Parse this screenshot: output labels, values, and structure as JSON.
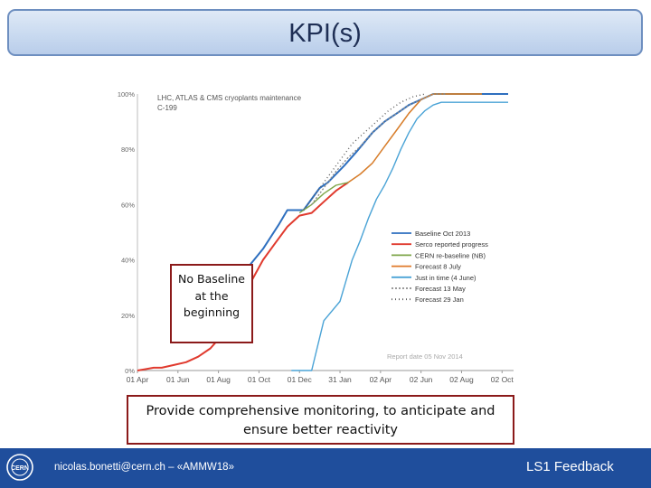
{
  "slide": {
    "title": "KPI(s)",
    "callout_baseline": "No Baseline at the beginning",
    "callout_summary": "Provide comprehensive monitoring, to anticipate and ensure better reactivity"
  },
  "footer": {
    "author": "nicolas.bonetti@cern.ch – «AMMW18»",
    "right_label": "LS1 Feedback",
    "logo_icon": "cern-logo-icon"
  },
  "chart_data": {
    "type": "line",
    "title": "LHC, ATLAS & CMS cryoplants maintenance C-199",
    "footnote": "Report date 05 Nov 2014",
    "x_ticks": [
      "01 Apr",
      "01 Jun",
      "01 Aug",
      "01 Oct",
      "01 Dec",
      "31 Jan",
      "02 Apr",
      "02 Jun",
      "02 Aug",
      "02 Oct"
    ],
    "y_ticks": [
      "0%",
      "20%",
      "40%",
      "60%",
      "80%",
      "100%"
    ],
    "ylim": [
      0,
      100
    ],
    "xlim": [
      0,
      18.3
    ],
    "grid": false,
    "legend_position": "right",
    "series": [
      {
        "name": "Baseline Oct 2013",
        "color": "#2e6fbf",
        "dash": "",
        "x": [
          5.2,
          6.2,
          7.0,
          7.4,
          8.2,
          9.0,
          9.4,
          10.2,
          10.8,
          11.6,
          12.2,
          13.0,
          13.4,
          14.0,
          14.6,
          15.2,
          16.0,
          18.3
        ],
        "y": [
          35,
          44,
          53,
          58,
          58,
          66,
          68,
          74,
          79,
          86,
          90,
          94,
          96,
          98,
          100,
          100,
          100,
          100
        ]
      },
      {
        "name": "Serco reported progress",
        "color": "#e03a2e",
        "dash": "",
        "x": [
          0,
          0.4,
          0.8,
          1.2,
          1.8,
          2.4,
          3.0,
          3.6,
          4.2,
          4.6,
          5.0,
          5.6,
          6.2,
          6.8,
          7.4,
          8.0,
          8.6,
          9.2,
          9.8,
          10.4
        ],
        "y": [
          0,
          0.5,
          1,
          1,
          2,
          3,
          5,
          8,
          13,
          19,
          25,
          32,
          40,
          46,
          52,
          56,
          57,
          61,
          65,
          68
        ]
      },
      {
        "name": "CERN re-baseline (NB)",
        "color": "#7fa64a",
        "dash": "",
        "x": [
          8.0,
          8.6,
          9.2,
          9.8,
          10.4,
          11.0,
          11.6,
          12.2,
          12.8,
          13.4,
          14.0,
          14.6,
          15.2,
          16.0,
          17.0
        ],
        "y": [
          57,
          60,
          64,
          67,
          68,
          71,
          75,
          81,
          87,
          93,
          98,
          100,
          100,
          100,
          100
        ]
      },
      {
        "name": "Forecast 8 July",
        "color": "#e07a2a",
        "dash": "",
        "x": [
          10.4,
          11.0,
          11.6,
          12.2,
          12.8,
          13.4,
          14.0,
          14.6,
          15.2,
          16.0,
          17.0
        ],
        "y": [
          68,
          71,
          75,
          81,
          87,
          93,
          98,
          100,
          100,
          100,
          100
        ]
      },
      {
        "name": "Just in time (4 June)",
        "color": "#4aa3d6",
        "dash": "",
        "x": [
          7.6,
          8.6,
          9.2,
          10.0,
          10.6,
          11.0,
          11.4,
          11.8,
          12.2,
          12.6,
          13.0,
          13.4,
          13.8,
          14.2,
          14.6,
          15.0,
          15.4,
          16.0,
          17.0,
          18.3
        ],
        "y": [
          0,
          0,
          18,
          25,
          40,
          47,
          55,
          62,
          67,
          73,
          80,
          86,
          91,
          94,
          96,
          97,
          97,
          97,
          97,
          97
        ]
      },
      {
        "name": "Forecast 13 May",
        "color": "#8c8c8c",
        "dash": "2,2",
        "x": [
          8.6,
          9.2,
          9.8,
          10.4,
          11.0,
          11.6,
          12.2,
          12.8,
          13.4,
          14.0,
          14.6,
          15.2
        ],
        "y": [
          60,
          66,
          72,
          77,
          81,
          86,
          90,
          93,
          96,
          98,
          100,
          100
        ]
      },
      {
        "name": "Forecast 29 Jan",
        "color": "#5c5c5c",
        "dash": "1,3",
        "x": [
          8.2,
          8.8,
          9.4,
          10.0,
          10.6,
          11.2,
          11.8,
          12.4,
          13.0,
          13.6,
          14.2
        ],
        "y": [
          58,
          64,
          70,
          76,
          82,
          86,
          90,
          94,
          97,
          99,
          100
        ]
      }
    ]
  }
}
